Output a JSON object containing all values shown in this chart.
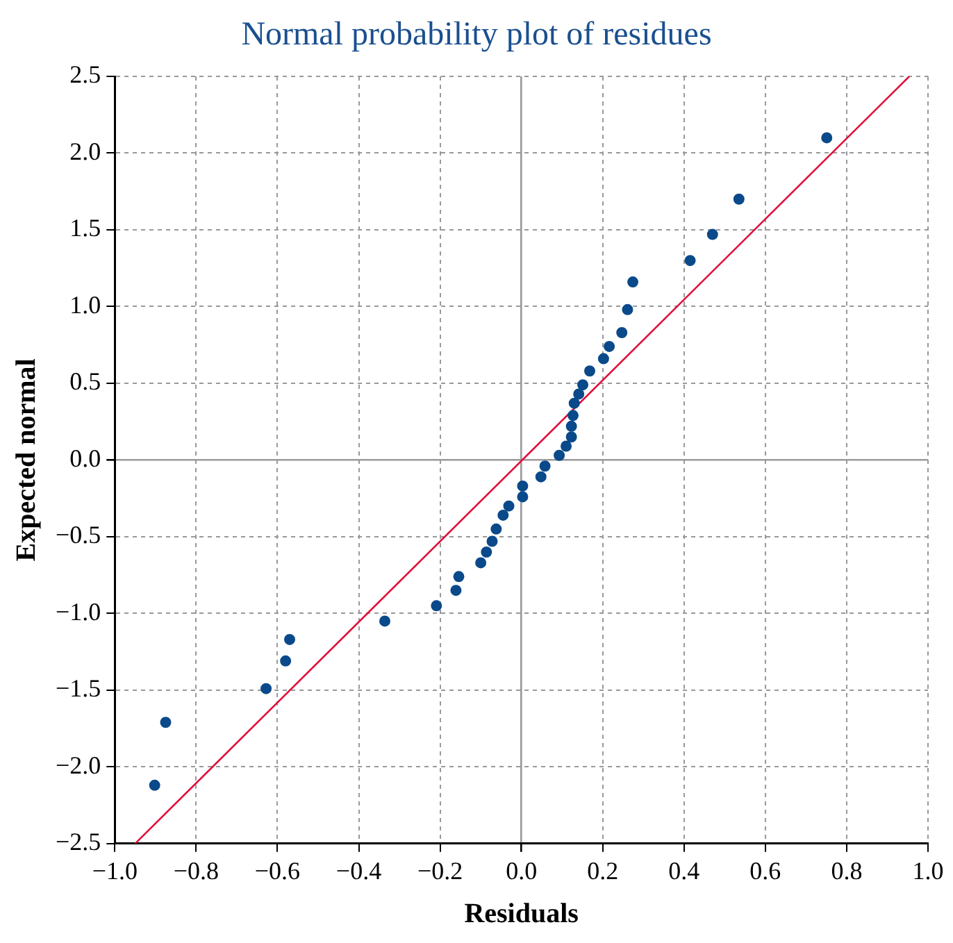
{
  "chart_data": {
    "type": "scatter",
    "title": "Normal probability plot of residues",
    "xlabel": "Residuals",
    "ylabel": "Expected normal",
    "xlim": [
      -1.0,
      1.0
    ],
    "ylim": [
      -2.5,
      2.5
    ],
    "xticks": [
      {
        "value": -1.0,
        "label": "−1.0"
      },
      {
        "value": -0.8,
        "label": "−0.8"
      },
      {
        "value": -0.6,
        "label": "−0.6"
      },
      {
        "value": -0.4,
        "label": "−0.4"
      },
      {
        "value": -0.2,
        "label": "−0.2"
      },
      {
        "value": 0,
        "label": "0.0"
      },
      {
        "value": 0.2,
        "label": "0.2"
      },
      {
        "value": 0.4,
        "label": "0.4"
      },
      {
        "value": 0.6,
        "label": "0.6"
      },
      {
        "value": 0.8,
        "label": "0.8"
      },
      {
        "value": 1.0,
        "label": "1.0"
      }
    ],
    "yticks": [
      {
        "value": -2.5,
        "label": "−2.5"
      },
      {
        "value": -2.0,
        "label": "−2.0"
      },
      {
        "value": -1.5,
        "label": "−1.5"
      },
      {
        "value": -1.0,
        "label": "−1.0"
      },
      {
        "value": -0.5,
        "label": "−0.5"
      },
      {
        "value": 0,
        "label": "0.0"
      },
      {
        "value": 0.5,
        "label": "0.5"
      },
      {
        "value": 1.0,
        "label": "1.0"
      },
      {
        "value": 1.5,
        "label": "1.5"
      },
      {
        "value": 2.0,
        "label": "2.0"
      },
      {
        "value": 2.5,
        "label": "2.5"
      }
    ],
    "grid": true,
    "legend": false,
    "marker": "circle",
    "series": [
      {
        "type": "scatter",
        "color": "#0a4a8a",
        "x": [
          -0.902,
          -0.875,
          -0.628,
          -0.58,
          -0.57,
          -0.336,
          -0.209,
          -0.161,
          -0.154,
          -0.1,
          -0.086,
          -0.072,
          -0.062,
          -0.045,
          -0.031,
          0.003,
          0.003,
          0.048,
          0.058,
          0.093,
          0.11,
          0.123,
          0.123,
          0.127,
          0.13,
          0.141,
          0.151,
          0.168,
          0.202,
          0.216,
          0.247,
          0.261,
          0.274,
          0.415,
          0.47,
          0.535,
          0.751
        ],
        "values": [
          -2.12,
          -1.71,
          -1.49,
          -1.31,
          -1.17,
          -1.05,
          -0.95,
          -0.85,
          -0.76,
          -0.67,
          -0.6,
          -0.53,
          -0.45,
          -0.36,
          -0.3,
          -0.24,
          -0.17,
          -0.11,
          -0.04,
          0.03,
          0.09,
          0.15,
          0.22,
          0.29,
          0.37,
          0.43,
          0.49,
          0.58,
          0.66,
          0.74,
          0.83,
          0.98,
          1.16,
          1.3,
          1.47,
          1.7,
          2.1
        ]
      },
      {
        "type": "line",
        "color": "#e0103a",
        "marker": "none",
        "line_style": "solid",
        "x": [
          -0.95,
          0.954
        ],
        "values": [
          -2.5,
          2.5
        ]
      }
    ]
  }
}
